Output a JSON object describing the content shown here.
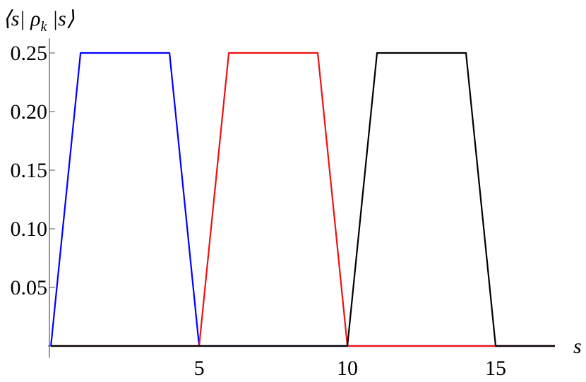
{
  "chart_data": {
    "type": "line",
    "ylabel": "⟨s| ρ",
    "ylabel_sub": "k",
    "ylabel_end": " |s⟩",
    "xlabel": "s",
    "x": [
      0,
      1,
      2,
      3,
      4,
      5,
      6,
      7,
      8,
      9,
      10,
      11,
      12,
      13,
      14,
      15,
      16,
      17
    ],
    "series": [
      {
        "color": "#0000ff",
        "values": [
          0,
          0.25,
          0.25,
          0.25,
          0.25,
          0,
          0,
          0,
          0,
          0,
          0,
          0,
          0,
          0,
          0,
          0,
          0,
          0
        ]
      },
      {
        "color": "#ee1111",
        "values": [
          0,
          0,
          0,
          0,
          0,
          0,
          0.25,
          0.25,
          0.25,
          0.25,
          0,
          0,
          0,
          0,
          0,
          0,
          0,
          0
        ]
      },
      {
        "color": "#000000",
        "values": [
          0,
          0,
          0,
          0,
          0,
          0,
          0,
          0,
          0,
          0,
          0,
          0.25,
          0.25,
          0.25,
          0.25,
          0,
          0,
          0
        ]
      }
    ],
    "xlim": [
      -0.05,
      17
    ],
    "ylim": [
      -0.01,
      0.26
    ],
    "xticks": [
      5,
      10,
      15
    ],
    "yticks": [
      {
        "value": 0.05,
        "label": "0.05"
      },
      {
        "value": 0.1,
        "label": "0.10"
      },
      {
        "value": 0.15,
        "label": "0.15"
      },
      {
        "value": 0.2,
        "label": "0.20"
      },
      0.25
    ]
  }
}
